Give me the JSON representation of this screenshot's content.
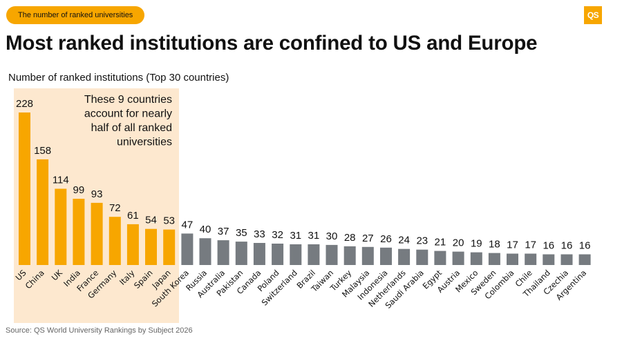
{
  "header": {
    "tag_label": "The number of ranked universities",
    "logo_text": "QS",
    "title": "Most ranked institutions are confined to US and Europe",
    "subtitle": "Number of ranked institutions (Top 30 countries)"
  },
  "footer": {
    "source": "Source: QS World University Rankings by Subject 2026"
  },
  "colors": {
    "highlight_bar": "#f7a600",
    "other_bar": "#767b80",
    "highlight_bg": "#fde8cf",
    "brand": "#f7a600"
  },
  "chart_data": {
    "type": "bar",
    "title": "Most ranked institutions are confined to US and Europe",
    "ylabel": "Number of ranked institutions (Top 30 countries)",
    "xlabel": "",
    "ylim": [
      0,
      228
    ],
    "grid": false,
    "categories": [
      "US",
      "China",
      "UK",
      "India",
      "France",
      "Germany",
      "Italy",
      "Spain",
      "Japan",
      "South Korea",
      "Russia",
      "Australia",
      "Pakistan",
      "Canada",
      "Poland",
      "Switzerland",
      "Brazil",
      "Taiwan",
      "Turkey",
      "Malaysia",
      "Indonesia",
      "Netherlands",
      "Saudi Arabia",
      "Egypt",
      "Austria",
      "Mexico",
      "Sweden",
      "Colombia",
      "Chile",
      "Thailand",
      "Czechia",
      "Argentina"
    ],
    "values": [
      228,
      158,
      114,
      99,
      93,
      72,
      61,
      54,
      53,
      47,
      40,
      37,
      35,
      33,
      32,
      31,
      31,
      30,
      28,
      27,
      26,
      24,
      23,
      21,
      20,
      19,
      18,
      17,
      17,
      16,
      16,
      16
    ],
    "highlight_count": 9,
    "annotation": [
      "These 9 countries",
      "account for nearly",
      "half of all ranked",
      "universities"
    ]
  }
}
